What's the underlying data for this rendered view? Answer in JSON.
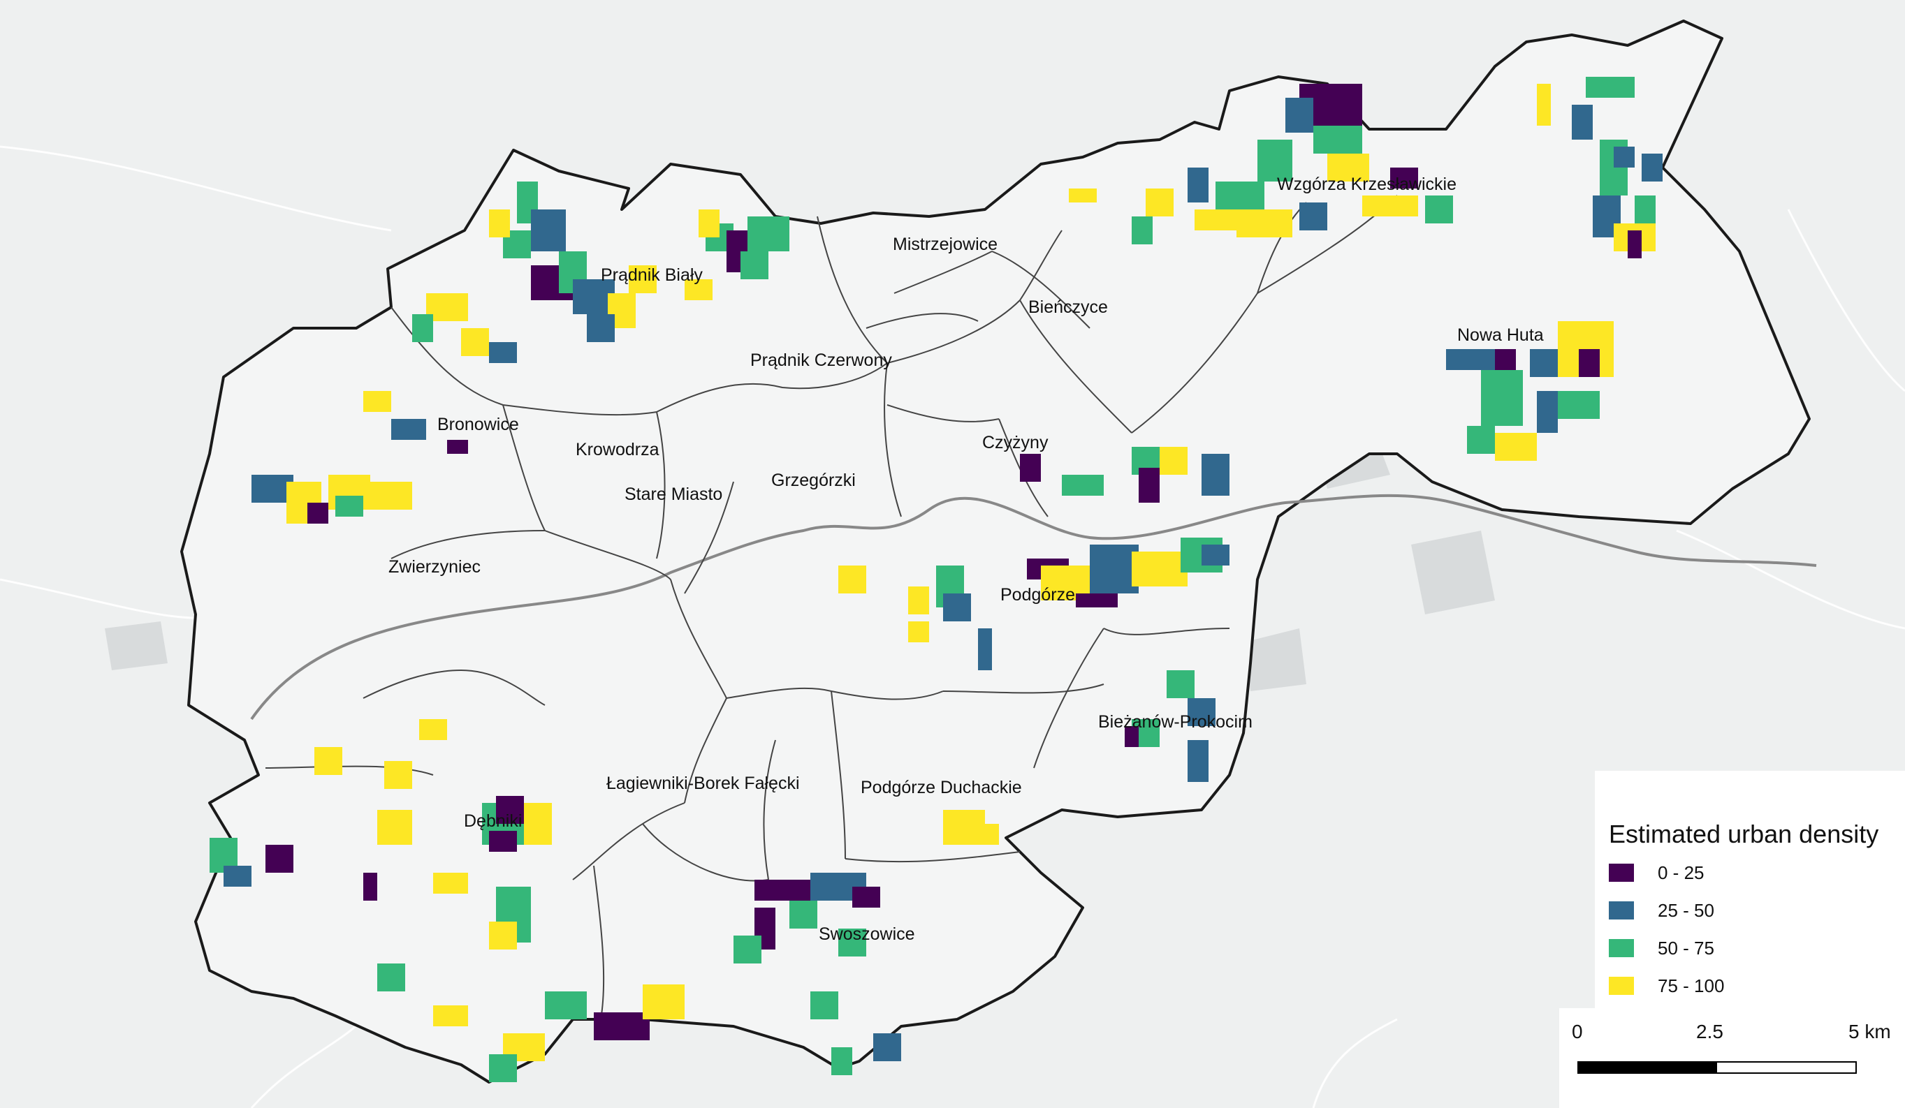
{
  "map": {
    "background_color": "#eef0f0",
    "city_fill_color": "#f4f5f5",
    "boundary_color": "#1a1a1a",
    "district_border_color": "#555555",
    "river_color": "#777777",
    "districts": [
      "Prądnik Biały",
      "Mistrzejowice",
      "Wzgórza Krzesławickie",
      "Bieńczyce",
      "Nowa Huta",
      "Prądnik Czerwony",
      "Bronowice",
      "Krowodrza",
      "Czyżyny",
      "Stare Miasto",
      "Grzegórzki",
      "Zwierzyniec",
      "Podgórze",
      "Bieżanów-Prokocim",
      "Łagiewniki-Borek Fałęcki",
      "Podgórze Duchackie",
      "Dębniki",
      "Swoszowice"
    ]
  },
  "legend": {
    "title": "Estimated urban density",
    "classes": [
      {
        "label": "0 - 25",
        "color": "#440154"
      },
      {
        "label": "25 - 50",
        "color": "#31688e"
      },
      {
        "label": "50 - 75",
        "color": "#35b779"
      },
      {
        "label": "75 - 100",
        "color": "#fde725"
      }
    ]
  },
  "scale": {
    "ticks": [
      "0",
      "2.5",
      "5 km"
    ]
  }
}
